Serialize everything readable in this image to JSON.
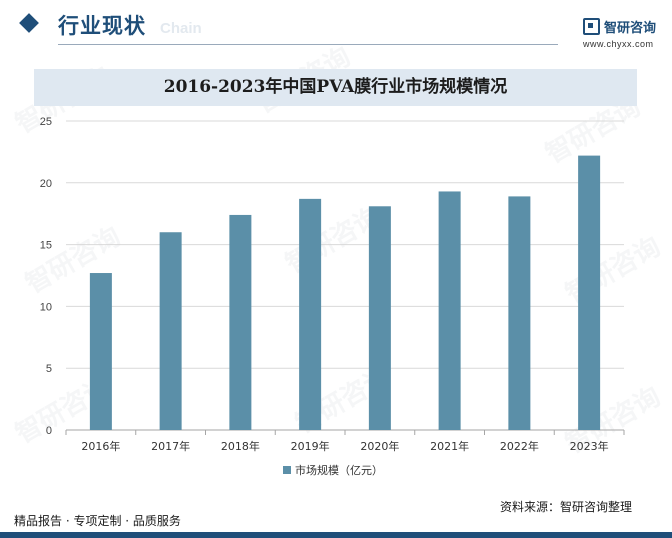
{
  "header": {
    "section_title": "行业现状",
    "section_subtitle": "Chain",
    "logo_name": "智研咨询",
    "logo_url": "www.chyxx.com"
  },
  "chart_data": {
    "type": "bar",
    "title": "2016-2023年中国PVA膜行业市场规模情况",
    "categories": [
      "2016年",
      "2017年",
      "2018年",
      "2019年",
      "2020年",
      "2021年",
      "2022年",
      "2023年"
    ],
    "series": [
      {
        "name": "市场规模（亿元）",
        "values": [
          12.7,
          16.0,
          17.4,
          18.7,
          18.1,
          19.3,
          18.9,
          22.2
        ]
      }
    ],
    "ylim": [
      0,
      25
    ],
    "yticks": [
      0,
      5,
      10,
      15,
      20,
      25
    ],
    "xlabel": "",
    "ylabel": "",
    "grid": true,
    "legend_position": "bottom",
    "colors": {
      "bar": "#5b8fa8",
      "grid": "#d9d9d9",
      "axis": "#a6a6a6"
    }
  },
  "footer": {
    "left": "精品报告 · 专项定制 · 品质服务",
    "right": "资料来源：智研咨询整理"
  },
  "watermark": "智研咨询"
}
